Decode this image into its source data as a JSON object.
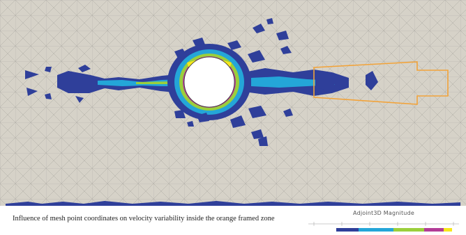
{
  "caption": "Influence of mesh point coordinates on velocity variability inside the orange framed zone",
  "legend": {
    "title": "Adjoint3D Magnitude",
    "colors": [
      "#2f3f9a",
      "#24a6d8",
      "#9bcf3b",
      "#b23c96",
      "#f6e71c"
    ]
  },
  "colors": {
    "background": "#d6d2c8",
    "mesh_lines": "#a6a59f",
    "frame": "#f2a33a",
    "cylinder": "#ffffff"
  }
}
